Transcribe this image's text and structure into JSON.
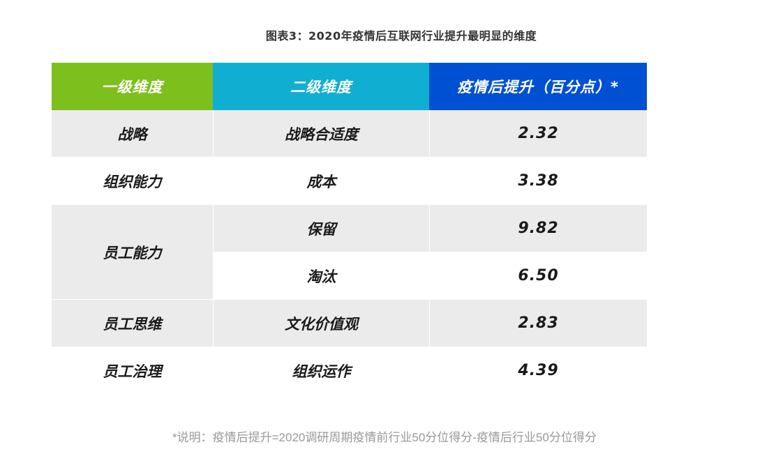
{
  "title": "图表3：2020年疫情后互联网行业提升最明显的维度",
  "chart_data": {
    "type": "table",
    "columns": [
      "一级维度",
      "二级维度",
      "疫情后提升（百分点）*"
    ],
    "rows": [
      {
        "primary": "战略",
        "secondary": "战略合适度",
        "value": "2.32"
      },
      {
        "primary": "组织能力",
        "secondary": "成本",
        "value": "3.38"
      },
      {
        "primary": "员工能力",
        "secondary": "保留",
        "value": "9.82"
      },
      {
        "primary": "",
        "secondary": "淘汰",
        "value": "6.50"
      },
      {
        "primary": "员工思维",
        "secondary": "文化价值观",
        "value": "2.83"
      },
      {
        "primary": "员工治理",
        "secondary": "组织运作",
        "value": "4.39"
      }
    ]
  },
  "colors": {
    "header_primary": "#7dc01d",
    "header_secondary": "#10afd1",
    "header_value": "#0050d4",
    "row_shade": "#ebebeb"
  },
  "note": "*说明：疫情后提升=2020调研周期疫情前行业50分位得分-疫情后行业50分位得分"
}
